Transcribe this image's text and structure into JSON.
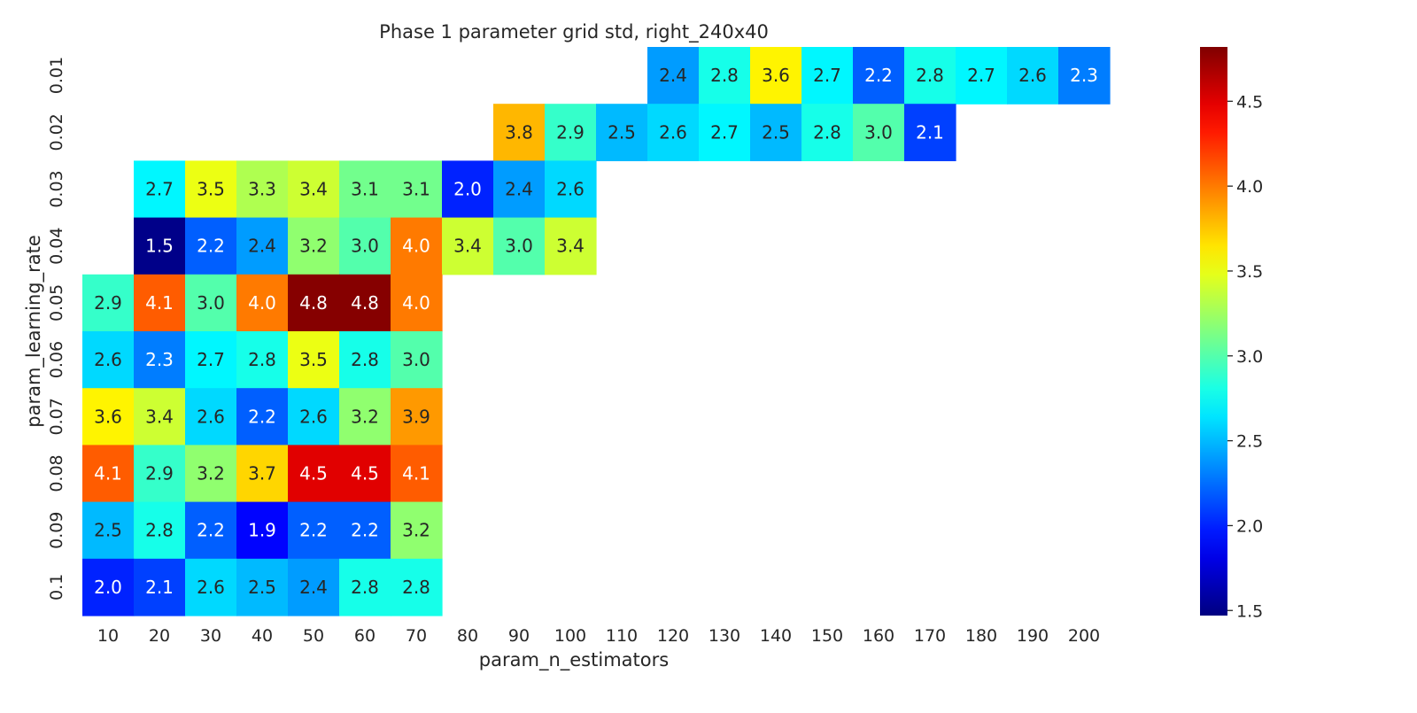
{
  "chart_data": {
    "type": "heatmap",
    "title": "Phase 1 parameter grid std, right_240x40",
    "xlabel": "param_n_estimators",
    "ylabel": "param_learning_rate",
    "x_categories": [
      "10",
      "20",
      "30",
      "40",
      "50",
      "60",
      "70",
      "80",
      "90",
      "100",
      "110",
      "120",
      "130",
      "140",
      "150",
      "160",
      "170",
      "180",
      "190",
      "200"
    ],
    "y_categories": [
      "0.01",
      "0.02",
      "0.03",
      "0.04",
      "0.05",
      "0.06",
      "0.07",
      "0.08",
      "0.09",
      "0.1"
    ],
    "values": [
      [
        null,
        null,
        null,
        null,
        null,
        null,
        null,
        null,
        null,
        null,
        null,
        2.4,
        2.8,
        3.6,
        2.7,
        2.2,
        2.8,
        2.7,
        2.6,
        2.3
      ],
      [
        null,
        null,
        null,
        null,
        null,
        null,
        null,
        null,
        3.8,
        2.9,
        2.5,
        2.6,
        2.7,
        2.5,
        2.8,
        3.0,
        2.1,
        null,
        null,
        null
      ],
      [
        null,
        2.7,
        3.5,
        3.3,
        3.4,
        3.1,
        3.1,
        2.0,
        2.4,
        2.6,
        null,
        null,
        null,
        null,
        null,
        null,
        null,
        null,
        null,
        null
      ],
      [
        null,
        1.5,
        2.2,
        2.4,
        3.2,
        3.0,
        4.0,
        3.4,
        3.0,
        3.4,
        null,
        null,
        null,
        null,
        null,
        null,
        null,
        null,
        null,
        null
      ],
      [
        2.9,
        4.1,
        3.0,
        4.0,
        4.8,
        4.8,
        4.0,
        null,
        null,
        null,
        null,
        null,
        null,
        null,
        null,
        null,
        null,
        null,
        null,
        null
      ],
      [
        2.6,
        2.3,
        2.7,
        2.8,
        3.5,
        2.8,
        3.0,
        null,
        null,
        null,
        null,
        null,
        null,
        null,
        null,
        null,
        null,
        null,
        null,
        null
      ],
      [
        3.6,
        3.4,
        2.6,
        2.2,
        2.6,
        3.2,
        3.9,
        null,
        null,
        null,
        null,
        null,
        null,
        null,
        null,
        null,
        null,
        null,
        null,
        null
      ],
      [
        4.1,
        2.9,
        3.2,
        3.7,
        4.5,
        4.5,
        4.1,
        null,
        null,
        null,
        null,
        null,
        null,
        null,
        null,
        null,
        null,
        null,
        null,
        null
      ],
      [
        2.5,
        2.8,
        2.2,
        1.9,
        2.2,
        2.2,
        3.2,
        null,
        null,
        null,
        null,
        null,
        null,
        null,
        null,
        null,
        null,
        null,
        null,
        null
      ],
      [
        2.0,
        2.1,
        2.6,
        2.5,
        2.4,
        2.8,
        2.8,
        null,
        null,
        null,
        null,
        null,
        null,
        null,
        null,
        null,
        null,
        null,
        null,
        null
      ]
    ],
    "colormap": "jet",
    "color_range": [
      1.47,
      4.82
    ],
    "colorbar_ticks": [
      "1.5",
      "2.0",
      "2.5",
      "3.0",
      "3.5",
      "4.0",
      "4.5"
    ],
    "value_format": "1 decimal",
    "grid": false,
    "colorbar": "right"
  }
}
